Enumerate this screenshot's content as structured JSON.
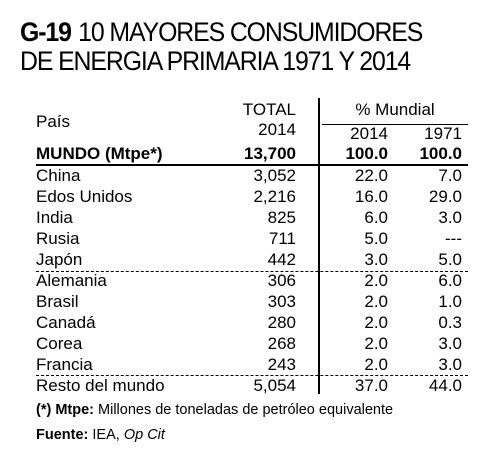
{
  "title": {
    "code": "G-19",
    "line1": "10 MAYORES CONSUMIDORES",
    "line2": "DE ENERGIA PRIMARIA 1971 Y 2014"
  },
  "headers": {
    "pais": "País",
    "total": "TOTAL",
    "total_year": "2014",
    "mundial": "% Mundial",
    "y2014": "2014",
    "y1971": "1971"
  },
  "world_row": {
    "label": "MUNDO (Mtpe*)",
    "total": "13,700",
    "p2014": "100.0",
    "p1971": "100.0"
  },
  "rows": [
    {
      "country": "China",
      "total": "3,052",
      "p2014": "22.0",
      "p1971": "7.0"
    },
    {
      "country": "Edos Unidos",
      "total": "2,216",
      "p2014": "16.0",
      "p1971": "29.0"
    },
    {
      "country": "India",
      "total": "825",
      "p2014": "6.0",
      "p1971": "3.0"
    },
    {
      "country": "Rusia",
      "total": "711",
      "p2014": "5.0",
      "p1971": "---"
    },
    {
      "country": "Japón",
      "total": "442",
      "p2014": "3.0",
      "p1971": "5.0"
    },
    {
      "country": "Alemania",
      "total": "306",
      "p2014": "2.0",
      "p1971": "6.0"
    },
    {
      "country": "Brasil",
      "total": "303",
      "p2014": "2.0",
      "p1971": "1.0"
    },
    {
      "country": "Canadá",
      "total": "280",
      "p2014": "2.0",
      "p1971": "0.3"
    },
    {
      "country": "Corea",
      "total": "268",
      "p2014": "2.0",
      "p1971": "3.0"
    },
    {
      "country": "Francia",
      "total": "243",
      "p2014": "2.0",
      "p1971": "3.0"
    },
    {
      "country": "Resto del mundo",
      "total": "5,054",
      "p2014": "37.0",
      "p1971": "44.0"
    }
  ],
  "footnote": {
    "mark": "(*) Mtpe:",
    "text": "Millones de toneladas de petróleo equivalente"
  },
  "source": {
    "label": "Fuente:",
    "org": "IEA,",
    "ref": "Op Cit"
  }
}
